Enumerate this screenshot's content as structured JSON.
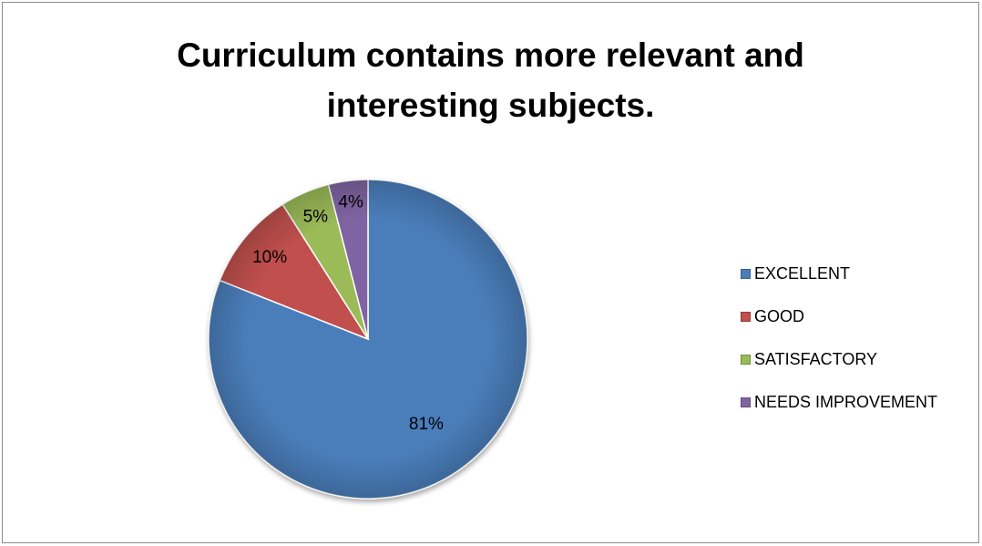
{
  "chart_data": {
    "type": "pie",
    "title_lines": [
      "Curriculum contains more relevant and",
      "interesting subjects."
    ],
    "categories": [
      "EXCELLENT",
      "GOOD",
      "SATISFACTORY",
      "NEEDS IMPROVEMENT"
    ],
    "values": [
      81,
      10,
      5,
      4
    ],
    "labels": [
      "81%",
      "10%",
      "5%",
      "4%"
    ],
    "colors": [
      "#4a7ebb",
      "#c0504d",
      "#9bbb59",
      "#8064a2"
    ],
    "legend_position": "right",
    "start_angle_deg": 0,
    "direction": "clockwise"
  }
}
